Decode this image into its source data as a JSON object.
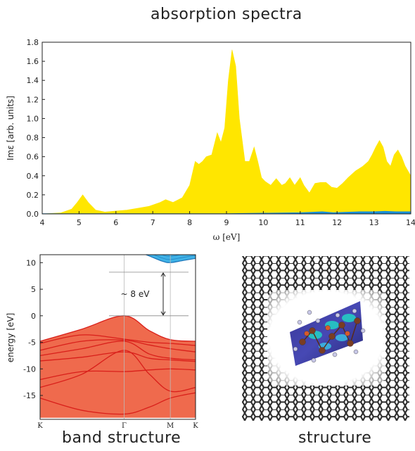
{
  "titles": {
    "absorption": "absorption spectra",
    "band": "band structure",
    "structure": "structure"
  },
  "colors": {
    "absorption_fill": "#ffe600",
    "absorption_secondary": "#1a8fd6",
    "valence_fill": "#ef6a4d",
    "valence_lines": "#d91f1a",
    "conduction_fill": "#3fb2e6",
    "conduction_lines": "#1b73b8",
    "graphene": "#2b2b2b"
  },
  "chart_data": [
    {
      "type": "area",
      "title": "absorption spectra",
      "xlabel": "ω [eV]",
      "ylabel": "Imε [arb. units]",
      "xlim": [
        4,
        14
      ],
      "ylim": [
        0,
        1.8
      ],
      "xticks": [
        "4",
        "5",
        "6",
        "7",
        "8",
        "9",
        "10",
        "11",
        "12",
        "13",
        "14"
      ],
      "yticks": [
        "0.0",
        "0.2",
        "0.4",
        "0.6",
        "0.8",
        "1.0",
        "1.2",
        "1.4",
        "1.6",
        "1.8"
      ],
      "series": [
        {
          "x": [
            4.0,
            4.5,
            4.8,
            4.95,
            5.1,
            5.25,
            5.45,
            5.7,
            6.0,
            6.3,
            6.6,
            6.9,
            7.2,
            7.35,
            7.55,
            7.8,
            8.0,
            8.15,
            8.25,
            8.35,
            8.45,
            8.6,
            8.75,
            8.85,
            8.95,
            9.05,
            9.15,
            9.25,
            9.35,
            9.5,
            9.62,
            9.75,
            9.85,
            9.95,
            10.05,
            10.2,
            10.35,
            10.5,
            10.6,
            10.72,
            10.85,
            11.0,
            11.1,
            11.25,
            11.4,
            11.55,
            11.7,
            11.85,
            12.0,
            12.15,
            12.3,
            12.5,
            12.7,
            12.85,
            12.95,
            13.05,
            13.15,
            13.25,
            13.35,
            13.45,
            13.55,
            13.65,
            13.75,
            13.85,
            14.0
          ],
          "values": [
            0.0,
            0.01,
            0.05,
            0.12,
            0.2,
            0.12,
            0.04,
            0.02,
            0.03,
            0.04,
            0.06,
            0.08,
            0.12,
            0.15,
            0.12,
            0.17,
            0.3,
            0.55,
            0.52,
            0.55,
            0.6,
            0.62,
            0.85,
            0.75,
            0.9,
            1.4,
            1.72,
            1.55,
            1.0,
            0.55,
            0.55,
            0.7,
            0.55,
            0.38,
            0.34,
            0.3,
            0.37,
            0.3,
            0.32,
            0.38,
            0.3,
            0.38,
            0.3,
            0.22,
            0.32,
            0.33,
            0.33,
            0.28,
            0.27,
            0.32,
            0.38,
            0.45,
            0.5,
            0.55,
            0.62,
            0.7,
            0.77,
            0.7,
            0.55,
            0.5,
            0.62,
            0.67,
            0.6,
            0.5,
            0.4
          ]
        },
        {
          "x": [
            4.0,
            8.0,
            9.0,
            10.0,
            11.0,
            11.3,
            11.6,
            11.9,
            12.2,
            12.6,
            13.0,
            13.3,
            13.6,
            13.9,
            14.0
          ],
          "values": [
            0.0,
            0.0,
            0.0,
            0.005,
            0.01,
            0.015,
            0.02,
            0.01,
            0.015,
            0.02,
            0.02,
            0.025,
            0.02,
            0.02,
            0.02
          ]
        }
      ]
    },
    {
      "type": "line",
      "title": "band structure",
      "xlabel": "",
      "ylabel": "energy [eV]",
      "ylim": [
        -19.5,
        11.5
      ],
      "xticks": [
        "K",
        "Γ",
        "M",
        "K"
      ],
      "yticks": [
        "10",
        "5",
        "0",
        "-5",
        "-10",
        "-15"
      ],
      "annotation": "~ 8 eV",
      "gap": [
        0,
        8.2
      ],
      "k_points": [
        0,
        1,
        1.55,
        1.85
      ],
      "conduction_band": {
        "bottom": [
          [
            0,
            12.2
          ],
          [
            1.0,
            12.0
          ],
          [
            1.2,
            11.8
          ],
          [
            1.45,
            10.3
          ],
          [
            1.55,
            10.0
          ],
          [
            1.7,
            10.4
          ],
          [
            1.85,
            10.8
          ]
        ],
        "top": [
          [
            0,
            13
          ],
          [
            1.85,
            13
          ]
        ]
      },
      "valence_bands": [
        [
          [
            0,
            -4.8
          ],
          [
            0.5,
            -2.5
          ],
          [
            1.0,
            0.0
          ],
          [
            1.3,
            -2.8
          ],
          [
            1.55,
            -4.5
          ],
          [
            1.85,
            -4.8
          ]
        ],
        [
          [
            0,
            -5.2
          ],
          [
            0.5,
            -3.6
          ],
          [
            1.0,
            -4.4
          ],
          [
            1.3,
            -5.0
          ],
          [
            1.55,
            -5.2
          ],
          [
            1.85,
            -5.6
          ]
        ],
        [
          [
            0,
            -6.5
          ],
          [
            0.5,
            -4.8
          ],
          [
            1.0,
            -4.6
          ],
          [
            1.3,
            -5.5
          ],
          [
            1.55,
            -6.2
          ],
          [
            1.85,
            -6.8
          ]
        ],
        [
          [
            0,
            -7.5
          ],
          [
            0.5,
            -6.2
          ],
          [
            1.0,
            -4.8
          ],
          [
            1.3,
            -7.2
          ],
          [
            1.55,
            -8.0
          ],
          [
            1.85,
            -8.3
          ]
        ],
        [
          [
            0,
            -8.5
          ],
          [
            0.5,
            -7.8
          ],
          [
            1.0,
            -6.8
          ],
          [
            1.3,
            -8.0
          ],
          [
            1.55,
            -8.3
          ],
          [
            1.85,
            -8.6
          ]
        ],
        [
          [
            0,
            -12.0
          ],
          [
            0.5,
            -10.5
          ],
          [
            1.0,
            -10.5
          ],
          [
            1.3,
            -10.2
          ],
          [
            1.55,
            -10.0
          ],
          [
            1.85,
            -10.2
          ]
        ],
        [
          [
            0,
            -13.5
          ],
          [
            0.5,
            -11.0
          ],
          [
            1.0,
            -6.5
          ],
          [
            1.3,
            -11.0
          ],
          [
            1.55,
            -14.2
          ],
          [
            1.85,
            -13.5
          ]
        ],
        [
          [
            0,
            -15.5
          ],
          [
            0.5,
            -17.8
          ],
          [
            1.0,
            -18.5
          ],
          [
            1.3,
            -17.2
          ],
          [
            1.55,
            -15.5
          ],
          [
            1.85,
            -14.5
          ]
        ]
      ],
      "valence_bottom": -19.2
    }
  ]
}
